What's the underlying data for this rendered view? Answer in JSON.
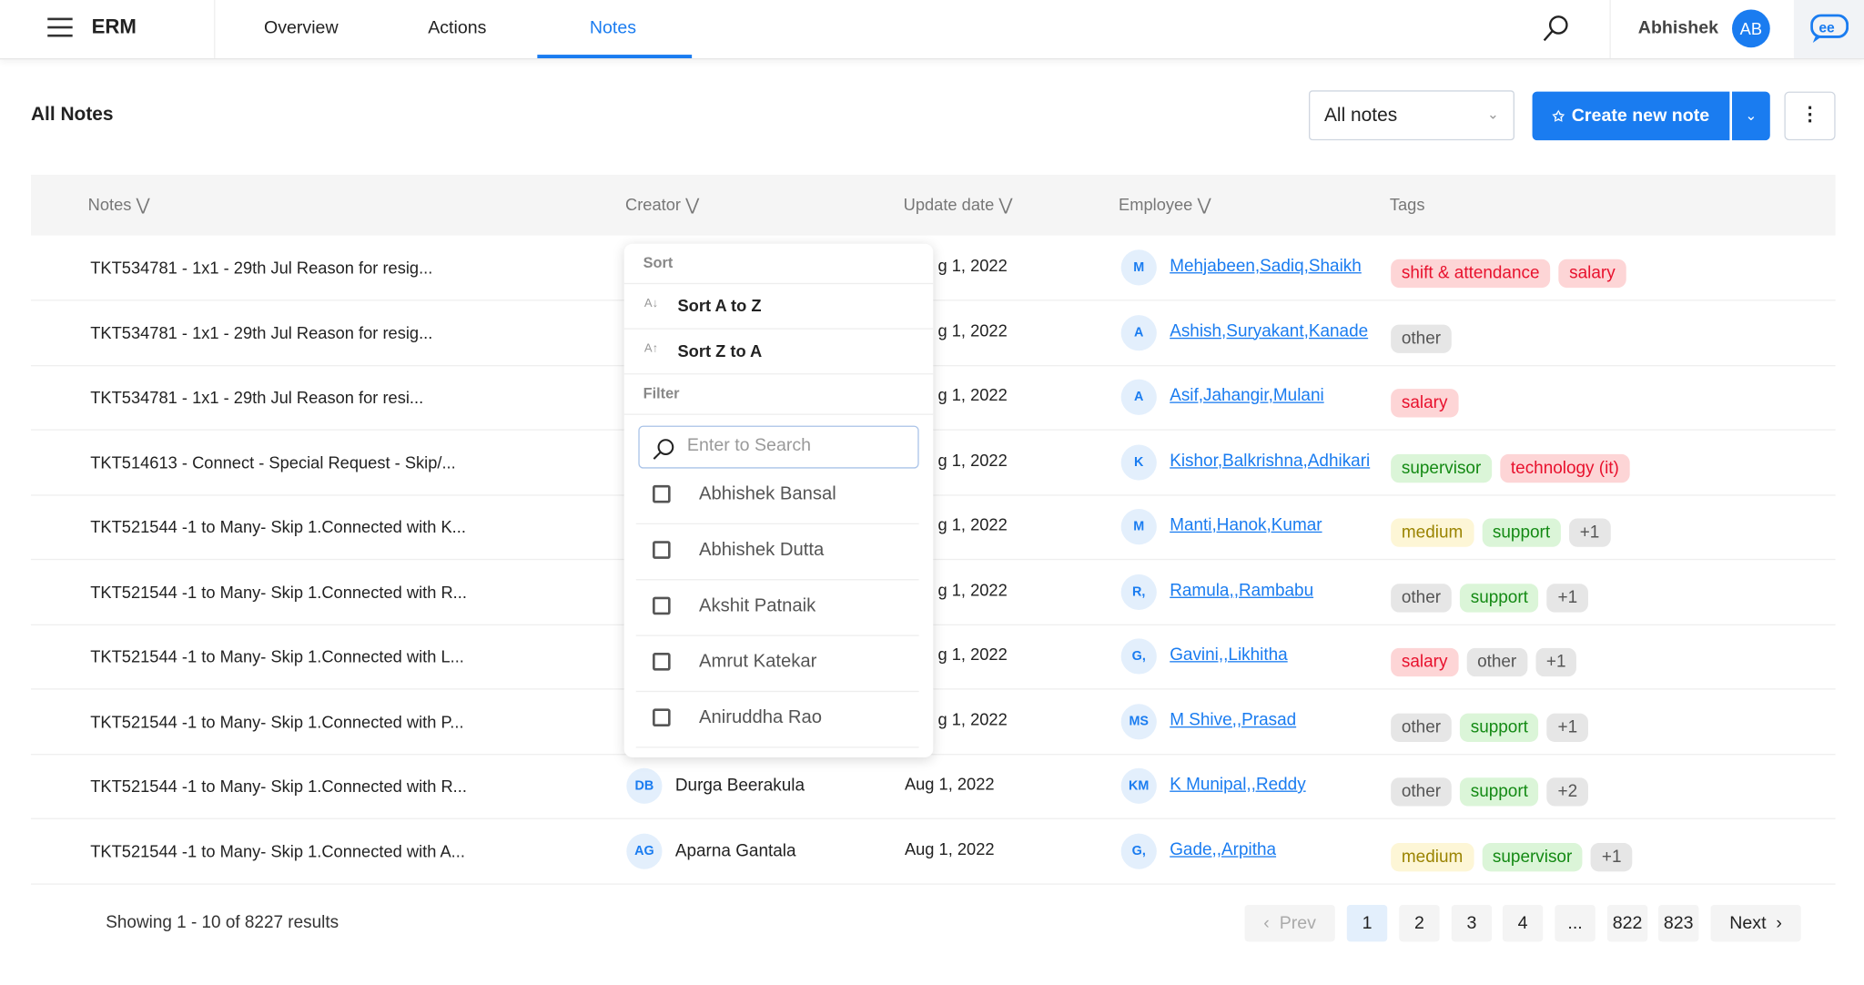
{
  "header": {
    "app_name": "ERM",
    "tabs": [
      {
        "label": "Overview"
      },
      {
        "label": "Actions"
      },
      {
        "label": "Notes",
        "active": true
      }
    ],
    "user_name": "Abhishek",
    "user_initials": "AB",
    "accent": "#1a7cf0"
  },
  "toolbar": {
    "title": "All Notes",
    "filter_value": "All notes",
    "create_label": "Create new note"
  },
  "table": {
    "columns": [
      "Notes",
      "Creator",
      "Update date",
      "Employee",
      "Tags"
    ],
    "rows": [
      {
        "note": "TKT534781  - 1x1 - 29th Jul Reason for resig...",
        "creator_initials": "",
        "creator": "",
        "date": "g 1, 2022",
        "emp_initials": "M",
        "employee": "Mehjabeen,Sadiq,Shaikh",
        "tags": [
          {
            "t": "shift & attendance",
            "c": "red"
          },
          {
            "t": "salary",
            "c": "red"
          }
        ]
      },
      {
        "note": "TKT534781  - 1x1 - 29th Jul Reason for resig...",
        "creator_initials": "",
        "creator": "",
        "date": "g 1, 2022",
        "emp_initials": "A",
        "employee": "Ashish,Suryakant,Kanade",
        "tags": [
          {
            "t": "other",
            "c": "gray"
          }
        ]
      },
      {
        "note": " TKT534781  - 1x1 - 29th Jul Reason for resi...",
        "creator_initials": "",
        "creator": "",
        "date": "g 1, 2022",
        "emp_initials": "A",
        "employee": "Asif,Jahangir,Mulani",
        "tags": [
          {
            "t": "salary",
            "c": "red"
          }
        ]
      },
      {
        "note": "TKT514613 - Connect - Special Request - Skip/...",
        "creator_initials": "",
        "creator": "",
        "date": "g 1, 2022",
        "emp_initials": "K",
        "employee": "Kishor,Balkrishna,Adhikari",
        "tags": [
          {
            "t": "supervisor",
            "c": "green"
          },
          {
            "t": "technology (it)",
            "c": "red"
          }
        ]
      },
      {
        "note": "TKT521544 -1 to Many- Skip 1.Connected with K...",
        "creator_initials": "",
        "creator": "",
        "date": "g 1, 2022",
        "emp_initials": "M",
        "employee": "Manti,Hanok,Kumar",
        "tags": [
          {
            "t": "medium",
            "c": "yellow"
          },
          {
            "t": "support",
            "c": "green"
          },
          {
            "t": "+1",
            "c": "gray"
          }
        ]
      },
      {
        "note": "TKT521544 -1 to Many- Skip 1.Connected with R...",
        "creator_initials": "",
        "creator": "",
        "date": "g 1, 2022",
        "emp_initials": "R,",
        "employee": "Ramula,,Rambabu",
        "tags": [
          {
            "t": "other",
            "c": "gray"
          },
          {
            "t": "support",
            "c": "green"
          },
          {
            "t": "+1",
            "c": "gray"
          }
        ]
      },
      {
        "note": "TKT521544 -1 to Many- Skip 1.Connected with L...",
        "creator_initials": "",
        "creator": "",
        "date": "g 1, 2022",
        "emp_initials": "G,",
        "employee": "Gavini,,Likhitha",
        "tags": [
          {
            "t": "salary",
            "c": "red"
          },
          {
            "t": "other",
            "c": "gray"
          },
          {
            "t": "+1",
            "c": "gray"
          }
        ]
      },
      {
        "note": "TKT521544 -1 to Many- Skip 1.Connected with P...",
        "creator_initials": "",
        "creator": "",
        "date": "g 1, 2022",
        "emp_initials": "MS",
        "employee": "M Shive,,Prasad",
        "tags": [
          {
            "t": "other",
            "c": "gray"
          },
          {
            "t": "support",
            "c": "green"
          },
          {
            "t": "+1",
            "c": "gray"
          }
        ]
      },
      {
        "note": "TKT521544 -1 to Many- Skip 1.Connected with R...",
        "creator_initials": "DB",
        "creator": "Durga Beerakula",
        "date": "Aug 1, 2022",
        "emp_initials": "KM",
        "employee": "K Munipal,,Reddy",
        "tags": [
          {
            "t": "other",
            "c": "gray"
          },
          {
            "t": "support",
            "c": "green"
          },
          {
            "t": "+2",
            "c": "gray"
          }
        ]
      },
      {
        "note": "TKT521544 -1 to Many- Skip 1.Connected with A...",
        "creator_initials": "AG",
        "creator": "Aparna Gantala",
        "date": "Aug 1, 2022",
        "emp_initials": "G,",
        "employee": "Gade,,Arpitha",
        "tags": [
          {
            "t": "medium",
            "c": "yellow"
          },
          {
            "t": "supervisor",
            "c": "green"
          },
          {
            "t": "+1",
            "c": "gray"
          }
        ]
      }
    ]
  },
  "dropdown": {
    "sort_heading": "Sort",
    "sort_az": "Sort A to Z",
    "sort_za": "Sort Z to A",
    "filter_heading": "Filter",
    "search_placeholder": "Enter to Search",
    "options": [
      "Abhishek Bansal",
      "Abhishek Dutta",
      "Akshit Patnaik",
      "Amrut Katekar",
      "Aniruddha Rao"
    ]
  },
  "footer": {
    "showing": "Showing  1 - 10 of  8227 results",
    "prev": "Prev",
    "next": "Next",
    "pages": [
      "1",
      "2",
      "3",
      "4",
      "...",
      "822",
      "823"
    ],
    "current_page": "1"
  }
}
